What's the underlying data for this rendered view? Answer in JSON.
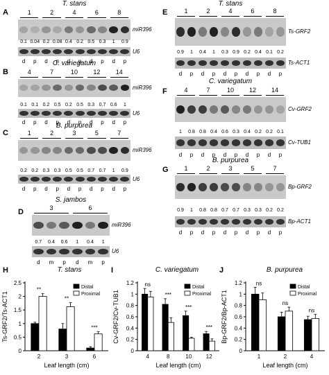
{
  "blots": [
    {
      "letter": "A",
      "title": "T. stans",
      "lanes": [
        "1",
        "2",
        "4",
        "6",
        "8"
      ],
      "values": [
        "0.1",
        "0.04",
        "0.2",
        "0.08",
        "0.4",
        "0.2",
        "0.5",
        "0.3",
        "1",
        "0.9"
      ],
      "gene": "miR396",
      "control": "U6",
      "dp": [
        "d",
        "p",
        "d",
        "p",
        "d",
        "p",
        "d",
        "p",
        "d",
        "p"
      ]
    },
    {
      "letter": "B",
      "title": "C. variegatum",
      "lanes": [
        "4",
        "7",
        "10",
        "12",
        "14"
      ],
      "values": [
        "0.1",
        "0.1",
        "0.2",
        "0.5",
        "0.2",
        "0.5",
        "0.3",
        "0.7",
        "0.6",
        "1"
      ],
      "gene": "miR396",
      "control": "U6",
      "dp": [
        "d",
        "p",
        "d",
        "p",
        "d",
        "p",
        "d",
        "p",
        "d",
        "p"
      ]
    },
    {
      "letter": "C",
      "title": "B. purpurea",
      "lanes": [
        "1",
        "2",
        "3",
        "5",
        "7"
      ],
      "values": [
        "0.2",
        "0.2",
        "0.3",
        "0.3",
        "0.5",
        "0.5",
        "0.7",
        "0.7",
        "1",
        "0.9"
      ],
      "gene": "miR396",
      "control": "U6",
      "dp": [
        "d",
        "p",
        "d",
        "p",
        "d",
        "p",
        "d",
        "p",
        "d",
        "p"
      ]
    },
    {
      "letter": "D",
      "title": "S. jambos",
      "lanes": [
        "3",
        "6"
      ],
      "values": [
        "0.7",
        "0.4",
        "0.6",
        "1",
        "0.4",
        "1"
      ],
      "gene": "miR396",
      "control": "U6",
      "dp": [
        "d",
        "m",
        "p",
        "d",
        "m",
        "p"
      ]
    },
    {
      "letter": "E",
      "title": "T. stans",
      "lanes": [
        "1",
        "2",
        "4",
        "6",
        "8"
      ],
      "values": [
        "0.9",
        "1",
        "0.4",
        "1",
        "0.3",
        "0.9",
        "0.2",
        "0.4",
        "0.1",
        "0.2"
      ],
      "gene": "Ts-GRF2",
      "control": "Ts-ACT1",
      "dp": [
        "d",
        "p",
        "d",
        "p",
        "d",
        "p",
        "d",
        "p",
        "d",
        "p"
      ]
    },
    {
      "letter": "F",
      "title": "C. variegatum",
      "lanes": [
        "4",
        "7",
        "10",
        "12",
        "14"
      ],
      "values": [
        "1",
        "0.8",
        "0.8",
        "0.4",
        "0.6",
        "0.3",
        "0.4",
        "0.2",
        "0.2",
        "0.1"
      ],
      "gene": "Cv-GRF2",
      "control": "Cv-TUB1",
      "dp": [
        "d",
        "p",
        "d",
        "p",
        "d",
        "p",
        "d",
        "p",
        "d",
        "p"
      ]
    },
    {
      "letter": "G",
      "title": "B. purpurea",
      "lanes": [
        "1",
        "2",
        "3",
        "5",
        "7"
      ],
      "values": [
        "0.9",
        "1",
        "0.8",
        "0.8",
        "0.7",
        "0.7",
        "0.3",
        "0.3",
        "0.2",
        "0.2"
      ],
      "gene": "Bp-GRF2",
      "control": "Bp-ACT1",
      "dp": [
        "d",
        "p",
        "d",
        "p",
        "d",
        "p",
        "d",
        "p",
        "d",
        "p"
      ]
    }
  ],
  "charts": {
    "H": {
      "letter": "H",
      "title": "T. stans",
      "ylabel": "Ts-GRF2/Ts-ACT1",
      "xlabel": "Leaf length (cm)",
      "legend": [
        "Distal",
        "Proximal"
      ]
    },
    "I": {
      "letter": "I",
      "title": "C. variegatum",
      "ylabel": "Cv-GRF2/Cv-TUB1",
      "xlabel": "Leaf length (cm)",
      "legend": [
        "Distal",
        "Proximal"
      ]
    },
    "J": {
      "letter": "J",
      "title": "B. purpurea",
      "ylabel": "Bp-GRF2/Bp-ACT1",
      "xlabel": "Leaf length (cm)",
      "legend": [
        "Distal",
        "Proximal"
      ]
    }
  },
  "chart_data": [
    {
      "type": "bar",
      "title": "T. stans",
      "xlabel": "Leaf length (cm)",
      "ylabel": "Ts-GRF2/Ts-ACT1",
      "categories": [
        "2",
        "3",
        "6"
      ],
      "ylim": [
        0,
        2.5
      ],
      "yticks": [
        "0",
        "0.5",
        "1",
        "1.5",
        "2",
        "2.5"
      ],
      "series": [
        {
          "name": "Distal",
          "values": [
            1.0,
            0.8,
            0.1
          ],
          "errors": [
            0.05,
            0.2,
            0.05
          ]
        },
        {
          "name": "Proximal",
          "values": [
            2.0,
            1.62,
            0.62
          ],
          "errors": [
            0.1,
            0.15,
            0.08
          ]
        }
      ],
      "significance": [
        "**",
        "**",
        "***"
      ],
      "legend_position": "top-right"
    },
    {
      "type": "bar",
      "title": "C. variegatum",
      "xlabel": "Leaf length (cm)",
      "ylabel": "Cv-GRF2/Cv-TUB1",
      "categories": [
        "4",
        "8",
        "10",
        "12"
      ],
      "ylim": [
        0,
        1.2
      ],
      "yticks": [
        "0",
        "0.2",
        "0.4",
        "0.6",
        "0.8",
        "1",
        "1.2"
      ],
      "series": [
        {
          "name": "Distal",
          "values": [
            1.0,
            0.82,
            0.62,
            0.3
          ],
          "errors": [
            0.1,
            0.1,
            0.08,
            0.04
          ]
        },
        {
          "name": "Proximal",
          "values": [
            0.95,
            0.5,
            0.22,
            0.17
          ],
          "errors": [
            0.1,
            0.08,
            0.02,
            0.04
          ]
        }
      ],
      "significance": [
        "ns",
        "***",
        "***",
        "***"
      ],
      "legend_position": "top-right"
    },
    {
      "type": "bar",
      "title": "B. purpurea",
      "xlabel": "Leaf length (cm)",
      "ylabel": "Bp-GRF2/Bp-ACT1",
      "categories": [
        "1",
        "2",
        "4"
      ],
      "ylim": [
        0,
        1.2
      ],
      "yticks": [
        "0",
        "0.2",
        "0.4",
        "0.6",
        "0.8",
        "1",
        "1.2"
      ],
      "series": [
        {
          "name": "Distal",
          "values": [
            1.0,
            0.6,
            0.55
          ],
          "errors": [
            0.12,
            0.08,
            0.06
          ]
        },
        {
          "name": "Proximal",
          "values": [
            0.9,
            0.7,
            0.57
          ],
          "errors": [
            0.12,
            0.07,
            0.07
          ]
        }
      ],
      "significance": [
        "ns",
        "ns",
        "ns"
      ],
      "legend_position": "top-right"
    }
  ]
}
